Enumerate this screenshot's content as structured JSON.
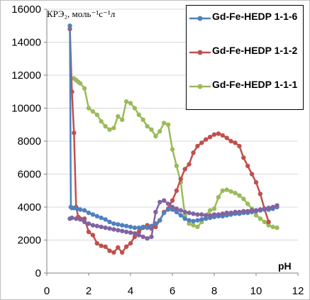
{
  "chart_data": {
    "type": "line",
    "title": "",
    "ylabel": "КРЭ₂, моль⁻¹с⁻¹л",
    "xlabel": "pH",
    "xlim": [
      0,
      12
    ],
    "ylim": [
      0,
      16000
    ],
    "xticks": [
      0,
      2,
      4,
      6,
      8,
      10,
      12
    ],
    "yticks": [
      0,
      2000,
      4000,
      6000,
      8000,
      10000,
      12000,
      14000,
      16000
    ],
    "xtick_labels": [
      "0",
      "2",
      "4",
      "6",
      "8",
      "10",
      "12"
    ],
    "ytick_labels": [
      "0",
      "2000",
      "4000",
      "6000",
      "8000",
      "10000",
      "12000",
      "14000",
      "16000"
    ],
    "grid": "horizontal",
    "legend_position": "top-right",
    "series": [
      {
        "name": "Gd-Fe-HEDP 1-1-6",
        "color": "#4f81bd",
        "in_legend": true,
        "x": [
          1.1,
          1.15,
          1.2,
          1.3,
          1.45,
          1.6,
          1.8,
          2.0,
          2.2,
          2.4,
          2.6,
          2.8,
          3.0,
          3.2,
          3.4,
          3.6,
          3.8,
          4.0,
          4.2,
          4.4,
          4.6,
          4.8,
          5.0,
          5.2,
          5.4,
          5.6,
          5.8,
          6.0,
          6.2,
          6.4,
          6.6,
          6.8,
          7.0,
          7.2,
          7.4,
          7.6,
          7.8,
          8.0,
          8.2,
          8.4,
          8.6,
          8.8,
          9.0,
          9.2,
          9.4,
          9.6,
          9.8,
          10.0,
          10.2,
          10.4,
          10.6,
          10.8,
          11.0
        ],
        "y": [
          15000,
          4000,
          3950,
          3950,
          3900,
          3850,
          3800,
          3650,
          3550,
          3450,
          3350,
          3250,
          3100,
          3000,
          2950,
          2900,
          2850,
          2800,
          2750,
          2750,
          2800,
          2750,
          2850,
          3000,
          3200,
          3650,
          3850,
          3850,
          3700,
          3500,
          3300,
          3200,
          3150,
          3200,
          3250,
          3300,
          3350,
          3400,
          3450,
          3450,
          3500,
          3550,
          3600,
          3600,
          3650,
          3650,
          3700,
          3750,
          3800,
          3850,
          3850,
          3900,
          4000
        ]
      },
      {
        "name": "Gd-Fe-HEDP 1-1-2",
        "color": "#c0504d",
        "in_legend": true,
        "x": [
          1.1,
          1.2,
          1.3,
          1.4,
          1.5,
          1.6,
          1.8,
          2.0,
          2.2,
          2.4,
          2.6,
          2.8,
          3.0,
          3.2,
          3.4,
          3.6,
          3.8,
          4.0,
          4.2,
          4.4,
          4.6,
          4.8,
          5.0,
          5.2,
          5.4,
          5.6,
          5.8,
          6.0,
          6.2,
          6.4,
          6.6,
          6.8,
          7.0,
          7.2,
          7.4,
          7.6,
          7.8,
          8.0,
          8.2,
          8.4,
          8.6,
          8.8,
          9.0,
          9.2,
          9.4,
          9.6,
          9.8,
          10.0,
          10.2,
          10.4,
          10.6
        ],
        "y": [
          14800,
          11000,
          8500,
          4000,
          3400,
          3300,
          3300,
          2500,
          2300,
          1800,
          1650,
          1600,
          1350,
          1250,
          1550,
          1250,
          1600,
          1800,
          2200,
          2500,
          2750,
          2900,
          2700,
          2800,
          3200,
          3700,
          3900,
          4400,
          5000,
          5700,
          6300,
          6600,
          7300,
          7700,
          7900,
          8100,
          8250,
          8400,
          8450,
          8350,
          8200,
          8000,
          7900,
          7700,
          7000,
          6500,
          6000,
          5500,
          4800,
          3900,
          3100
        ]
      },
      {
        "name": "Gd-Fe-HEDP 1-1-1",
        "color": "#9bbb59",
        "in_legend": true,
        "x": [
          1.3,
          1.4,
          1.5,
          1.6,
          1.8,
          2.0,
          2.2,
          2.4,
          2.6,
          2.8,
          3.0,
          3.2,
          3.4,
          3.6,
          3.8,
          4.0,
          4.2,
          4.4,
          4.6,
          4.8,
          5.0,
          5.2,
          5.4,
          5.6,
          5.8,
          6.0,
          6.2,
          6.4,
          6.6,
          6.8,
          7.0,
          7.2,
          7.4,
          7.6,
          7.8,
          8.0,
          8.2,
          8.4,
          8.6,
          8.8,
          9.0,
          9.2,
          9.4,
          9.6,
          9.8,
          10.0,
          10.2,
          10.4,
          10.6,
          10.8,
          11.0
        ],
        "y": [
          11800,
          11700,
          11600,
          11500,
          11200,
          10000,
          9800,
          9600,
          9200,
          8900,
          8700,
          8800,
          9500,
          9300,
          10400,
          10300,
          10000,
          9600,
          9300,
          8900,
          8700,
          8300,
          8600,
          9100,
          9000,
          7500,
          6500,
          5500,
          3500,
          3000,
          2900,
          2800,
          3100,
          3500,
          3800,
          3900,
          4600,
          5000,
          5050,
          4950,
          4850,
          4700,
          4500,
          4200,
          3900,
          3500,
          3300,
          3100,
          2900,
          2800,
          2750
        ]
      },
      {
        "name": "",
        "color": "#8064a2",
        "in_legend": false,
        "x": [
          1.1,
          1.2,
          1.4,
          1.6,
          1.8,
          2.0,
          2.2,
          2.4,
          2.6,
          2.8,
          3.0,
          3.2,
          3.4,
          3.6,
          3.8,
          4.0,
          4.2,
          4.4,
          4.6,
          4.8,
          5.0,
          5.2,
          5.4,
          5.6,
          5.8,
          6.0,
          6.2,
          6.4,
          6.6,
          6.8,
          7.0,
          7.2,
          7.4,
          7.6,
          7.8,
          8.0,
          8.2,
          8.4,
          8.6,
          8.8,
          9.0,
          9.2,
          9.4,
          9.6,
          9.8,
          10.0,
          10.2,
          10.4,
          10.6,
          10.8,
          11.0
        ],
        "y": [
          3300,
          3350,
          3300,
          3250,
          3100,
          3000,
          2900,
          2850,
          2800,
          2750,
          2700,
          2650,
          2600,
          2550,
          2500,
          2450,
          2400,
          2300,
          2200,
          2100,
          2200,
          3700,
          4300,
          4400,
          4200,
          4000,
          3900,
          3800,
          3700,
          3650,
          3600,
          3550,
          3550,
          3500,
          3500,
          3550,
          3550,
          3600,
          3650,
          3650,
          3700,
          3700,
          3750,
          3750,
          3800,
          3800,
          3850,
          3900,
          3950,
          4000,
          4100
        ]
      }
    ]
  }
}
